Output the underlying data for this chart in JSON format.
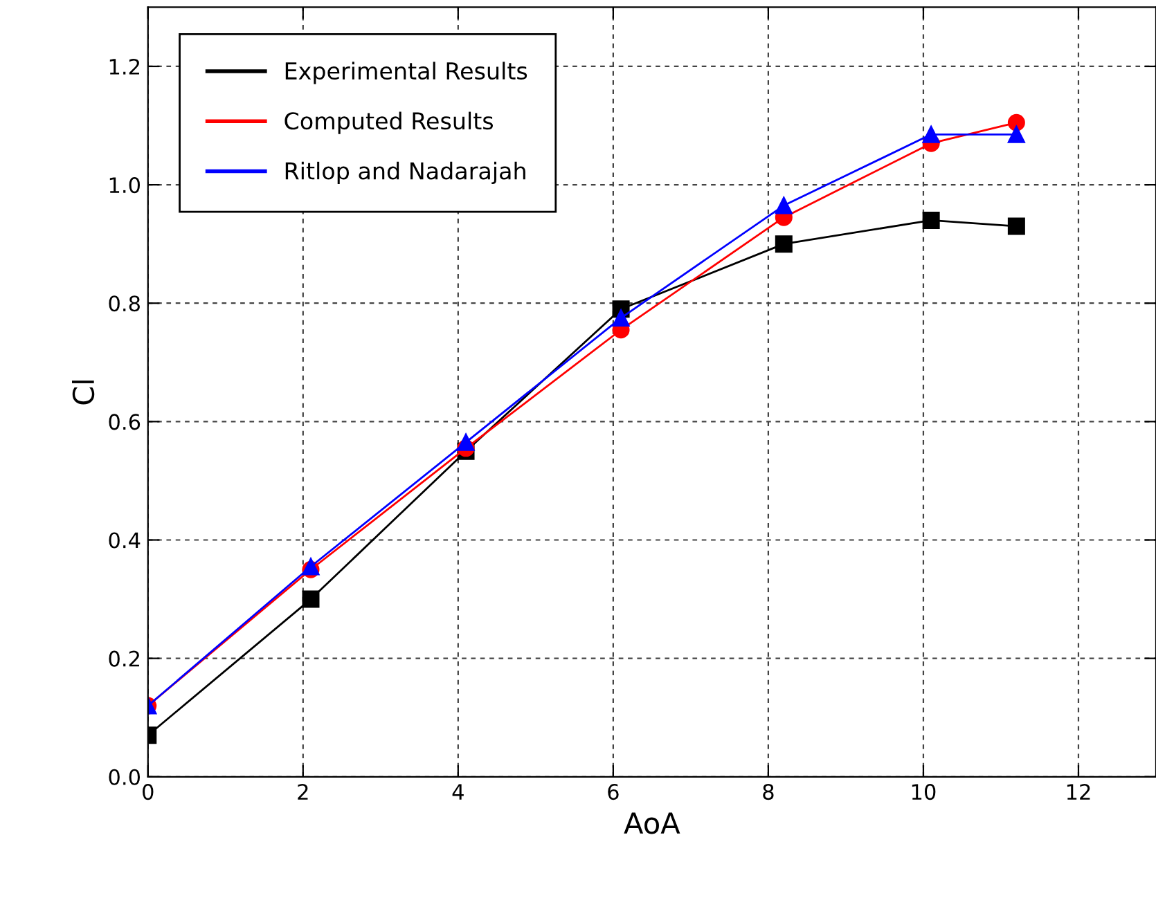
{
  "chart_data": {
    "type": "line",
    "xlabel": "AoA",
    "ylabel": "Cl",
    "x": [
      0,
      2.1,
      4.1,
      6.1,
      8.2,
      10.1,
      11.2
    ],
    "series": [
      {
        "name": "Experimental Results",
        "color": "#000000",
        "marker": "square",
        "values": [
          0.07,
          0.3,
          0.55,
          0.79,
          0.9,
          0.94,
          0.93
        ]
      },
      {
        "name": "Computed Results",
        "color": "#ff0000",
        "marker": "circle",
        "values": [
          0.12,
          0.35,
          0.555,
          0.755,
          0.945,
          1.07,
          1.105
        ]
      },
      {
        "name": "Ritlop and Nadarajah",
        "color": "#0000ff",
        "marker": "triangle",
        "values": [
          0.12,
          0.355,
          0.565,
          0.775,
          0.965,
          1.085,
          1.085
        ]
      }
    ],
    "xlim": [
      0,
      13
    ],
    "xticks": [
      0,
      2,
      4,
      6,
      8,
      10,
      12
    ],
    "ylim": [
      0,
      1.3
    ],
    "yticks": [
      {
        "value": 0,
        "label": "0.0"
      },
      0.2,
      0.4,
      0.6,
      0.8,
      {
        "value": 1,
        "label": "1.0"
      },
      1.2
    ],
    "grid": true,
    "legend": "top left",
    "line_style": "solid"
  }
}
